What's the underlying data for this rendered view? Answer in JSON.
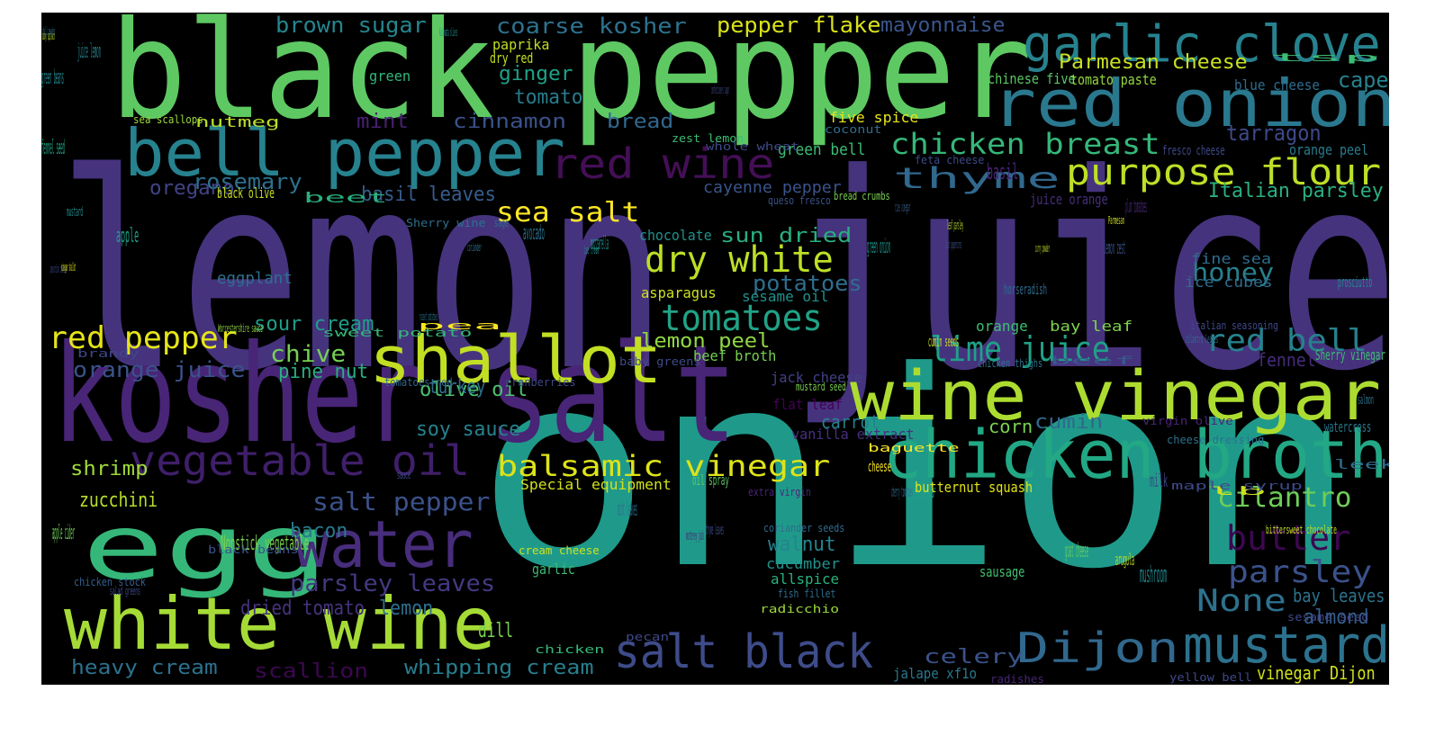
{
  "words": [
    {
      "t": "lemon juice",
      "c": "#46337e"
    },
    {
      "t": "onion",
      "c": "#1f9a8a"
    },
    {
      "t": "black pepper",
      "c": "#5ec962"
    },
    {
      "t": "kosher salt",
      "c": "#482576"
    },
    {
      "t": "egg",
      "c": "#35b779"
    },
    {
      "t": "garlic clove",
      "c": "#26828e"
    },
    {
      "t": "red onion",
      "c": "#2a788e"
    },
    {
      "t": "bell pepper",
      "c": "#26828e"
    },
    {
      "t": "wine vinegar",
      "c": "#addc30"
    },
    {
      "t": "chicken broth",
      "c": "#22a884"
    },
    {
      "t": "white wine",
      "c": "#a5db36"
    },
    {
      "t": "shallot",
      "c": "#c2df23"
    },
    {
      "t": "water",
      "c": "#472d7b"
    },
    {
      "t": "vegetable oil",
      "c": "#3f1f6a"
    },
    {
      "t": "red wine",
      "c": "#440f56"
    },
    {
      "t": "salt black",
      "c": "#3e4c8a"
    },
    {
      "t": "Dijon",
      "c": "#31688e"
    },
    {
      "t": "mustard",
      "c": "#2c728e"
    },
    {
      "t": "purpose flour",
      "c": "#bddf26"
    },
    {
      "t": "chicken breast",
      "c": "#35b779"
    },
    {
      "t": "thyme",
      "c": "#31688e"
    },
    {
      "t": "dry white",
      "c": "#bddf26"
    },
    {
      "t": "tomatoes",
      "c": "#20a386"
    },
    {
      "t": "balsamic vinegar",
      "c": "#dde318"
    },
    {
      "t": "red pepper",
      "c": "#e5e419"
    },
    {
      "t": "lime juice",
      "c": "#1fa188"
    },
    {
      "t": "red bell",
      "c": "#26828e"
    },
    {
      "t": "butter",
      "c": "#3e0751"
    },
    {
      "t": "parsley",
      "c": "#3b528b"
    },
    {
      "t": "None",
      "c": "#2c728e"
    },
    {
      "t": "cilantro",
      "c": "#6ece58"
    },
    {
      "t": "sea salt",
      "c": "#fde725"
    },
    {
      "t": "Parmesan cheese",
      "c": "#c8e020"
    },
    {
      "t": "brown sugar",
      "c": "#25858e"
    },
    {
      "t": "coarse kosher",
      "c": "#2c728e"
    },
    {
      "t": "pepper flake",
      "c": "#d8e219"
    },
    {
      "t": "mayonnaise",
      "c": "#39568c"
    },
    {
      "t": "ginger",
      "c": "#1fa188"
    },
    {
      "t": "tomato",
      "c": "#287c8e"
    },
    {
      "t": "mint",
      "c": "#482071"
    },
    {
      "t": "cinnamon",
      "c": "#3b528b"
    },
    {
      "t": "bread",
      "c": "#31688e"
    },
    {
      "t": "rosemary",
      "c": "#2d708e"
    },
    {
      "t": "basil leaves",
      "c": "#365d8d"
    },
    {
      "t": "basil",
      "c": "#482475"
    },
    {
      "t": "oregano",
      "c": "#414487"
    },
    {
      "t": "honey",
      "c": "#27808e"
    },
    {
      "t": "capers",
      "c": "#26828e"
    },
    {
      "t": "tarragon",
      "c": "#3e4a89"
    },
    {
      "t": "Italian parsley",
      "c": "#2ab07f"
    },
    {
      "t": "orange juice",
      "c": "#3b528b"
    },
    {
      "t": "chive",
      "c": "#75d054"
    },
    {
      "t": "pine nut",
      "c": "#29af7f"
    },
    {
      "t": "sour cream",
      "c": "#1f9e89"
    },
    {
      "t": "lemon peel",
      "c": "#90d743"
    },
    {
      "t": "potatoes",
      "c": "#2e6e8e"
    },
    {
      "t": "sun dried",
      "c": "#29af7f"
    },
    {
      "t": "olive oil",
      "c": "#4ac16d"
    },
    {
      "t": "soy sauce",
      "c": "#26828e"
    },
    {
      "t": "cumin",
      "c": "#31688e"
    },
    {
      "t": "salt pepper",
      "c": "#3b528b"
    },
    {
      "t": "shrimp",
      "c": "#9fda3a"
    },
    {
      "t": "zucchini",
      "c": "#b5de2b"
    },
    {
      "t": "walnut",
      "c": "#25848e"
    },
    {
      "t": "parsley leaves",
      "c": "#453882"
    },
    {
      "t": "heavy cream",
      "c": "#2c728e"
    },
    {
      "t": "whipping cream",
      "c": "#277f8e"
    },
    {
      "t": "scallion",
      "c": "#3e0751"
    },
    {
      "t": "celery",
      "c": "#3b528b"
    },
    {
      "t": "mushroom",
      "c": "#23898e"
    },
    {
      "t": "goat cheese",
      "c": "#5ec962"
    },
    {
      "t": "almond",
      "c": "#355f8d"
    },
    {
      "t": "bay leaves",
      "c": "#2c728e"
    },
    {
      "t": "vinegar Dijon",
      "c": "#d0e11c"
    },
    {
      "t": "green beans",
      "c": "#24878e"
    },
    {
      "t": "juice lemon",
      "c": "#25858e"
    },
    {
      "t": "fennel seed",
      "c": "#20a486"
    },
    {
      "t": "apple",
      "c": "#1f9e89"
    },
    {
      "t": "apple cider",
      "c": "#6ece58"
    },
    {
      "t": "bacon",
      "c": "#2a788e"
    },
    {
      "t": "dried tomato",
      "c": "#46337e"
    },
    {
      "t": "lemon",
      "c": "#2d708e"
    },
    {
      "t": "dill",
      "c": "#7ad151"
    },
    {
      "t": "turkey",
      "c": "#2d708e"
    },
    {
      "t": "carrot",
      "c": "#26828e"
    },
    {
      "t": "avocado",
      "c": "#2c728e"
    },
    {
      "t": "mozzarella",
      "c": "#1f968b"
    },
    {
      "t": "chocolate",
      "c": "#21918c"
    },
    {
      "t": "green onion",
      "c": "#1f968b"
    },
    {
      "t": "lemon zest",
      "c": "#3b528b"
    },
    {
      "t": "plum tomatoes",
      "c": "#482878"
    },
    {
      "t": "fennel bulb",
      "c": "#472c7a"
    },
    {
      "t": "milk",
      "c": "#3f4788"
    },
    {
      "t": "corn",
      "c": "#7ad151"
    },
    {
      "t": "mint leaves",
      "c": "#2d708e"
    },
    {
      "t": "cider vinegar",
      "c": "#1fa187"
    },
    {
      "t": "arugula",
      "c": "#c2df23"
    },
    {
      "t": "eggplant",
      "c": "#2d708e"
    },
    {
      "t": "green bell",
      "c": "#3dbc74"
    },
    {
      "t": "cayenne pepper",
      "c": "#3a548c"
    },
    {
      "t": "asparagus",
      "c": "#cde11d"
    },
    {
      "t": "sesame oil",
      "c": "#21918c"
    },
    {
      "t": "beef broth",
      "c": "#75d054"
    },
    {
      "t": "jack cheese",
      "c": "#424086"
    },
    {
      "t": "flat leaf",
      "c": "#440154"
    },
    {
      "t": "vanilla extract",
      "c": "#46307e"
    },
    {
      "t": "green",
      "c": "#32b67a"
    },
    {
      "t": "paprika",
      "c": "#c0df25"
    },
    {
      "t": "dry red",
      "c": "#c5e021"
    },
    {
      "t": "nutmeg",
      "c": "#b8de29"
    },
    {
      "t": "five spice",
      "c": "#e7e419"
    },
    {
      "t": "chinese five",
      "c": "#5ac864"
    },
    {
      "t": "tomato paste",
      "c": "#95d840"
    },
    {
      "t": "blue cheese",
      "c": "#2f6c8e"
    },
    {
      "t": "orange peel",
      "c": "#287d8e"
    },
    {
      "t": "juice orange",
      "c": "#472f7d"
    },
    {
      "t": "fine sea",
      "c": "#2f6c8e"
    },
    {
      "t": "ice cubes",
      "c": "#2f6b8e"
    },
    {
      "t": "prosciutto",
      "c": "#228b8d"
    },
    {
      "t": "beet",
      "c": "#2ab07f"
    },
    {
      "t": "black olive",
      "c": "#c8e020"
    },
    {
      "t": "mustard",
      "c": "#21908d"
    },
    {
      "t": "horseradish",
      "c": "#2e6d8e"
    },
    {
      "t": "orange",
      "c": "#40bd72"
    },
    {
      "t": "bay leaf",
      "c": "#7fd34e"
    },
    {
      "t": "cumin seeds",
      "c": "#cae11f"
    },
    {
      "t": "beef",
      "c": "#38588c"
    },
    {
      "t": "Sherry vinegar",
      "c": "#3fbc73"
    },
    {
      "t": "watercress",
      "c": "#2a788e"
    },
    {
      "t": "salmon",
      "c": "#2c738e"
    },
    {
      "t": "butternut squash",
      "c": "#e2e418"
    },
    {
      "t": "Special equipment",
      "c": "#d0e11c"
    },
    {
      "t": "Nonstick vegetable",
      "c": "#7ad151"
    },
    {
      "t": "oil spray",
      "c": "#5ec962"
    },
    {
      "t": "leek",
      "c": "#2f6c8e"
    },
    {
      "t": "cucumber",
      "c": "#21918c"
    },
    {
      "t": "allspice",
      "c": "#2bb07f"
    },
    {
      "t": "sausage",
      "c": "#44bf70"
    },
    {
      "t": "garlic",
      "c": "#3dbc74"
    },
    {
      "t": "cheese",
      "c": "#fde725"
    },
    {
      "t": "cherry tomatoes",
      "c": "#2e6e8e"
    },
    {
      "t": "monterey jack",
      "c": "#482173"
    },
    {
      "t": "thyme leaves",
      "c": "#3e4c8a"
    },
    {
      "t": "leaf parsley",
      "c": "#b8de29"
    },
    {
      "t": "rice vinegar",
      "c": "#355f8d"
    },
    {
      "t": "jalape xf1o",
      "c": "#2a788e"
    },
    {
      "t": "yellow bell",
      "c": "#3f4889"
    },
    {
      "t": "chicken thighs",
      "c": "#2b748e"
    },
    {
      "t": "sesame seed",
      "c": "#3f4889"
    },
    {
      "t": "Kalamata olives",
      "c": "#21918c"
    },
    {
      "t": "tsp",
      "c": "#3dbc74"
    },
    {
      "t": "confectioners sugar",
      "c": "#3e4989"
    },
    {
      "t": "coconut",
      "c": "#2f6c8e"
    },
    {
      "t": "zest lemon",
      "c": "#3dbc74"
    },
    {
      "t": "whole wheat",
      "c": "#3e4a89"
    },
    {
      "t": "sea scallops",
      "c": "#9bd93c"
    },
    {
      "t": "baby spinach",
      "c": "#b2dd2d"
    },
    {
      "t": "chili powder",
      "c": "#2f6b8e"
    },
    {
      "t": "Sherry wine",
      "c": "#2d708e"
    },
    {
      "t": "queso fresco",
      "c": "#3b528b"
    },
    {
      "t": "bread crumbs",
      "c": "#7ad151"
    },
    {
      "t": "feta cheese",
      "c": "#3e4a89"
    },
    {
      "t": "fresco cheese",
      "c": "#3e4a89"
    },
    {
      "t": "Parmesan",
      "c": "#cde11d"
    },
    {
      "t": "curry powder",
      "c": "#b8de29"
    },
    {
      "t": "black peppercorns",
      "c": "#3b528b"
    },
    {
      "t": "sage",
      "c": "#2f6c8e"
    },
    {
      "t": "coriander",
      "c": "#2f6c8e"
    },
    {
      "t": "ice cream",
      "c": "#21918c"
    },
    {
      "t": "pecorino cheese",
      "c": "#3e4a89"
    },
    {
      "t": "vinegar shallot",
      "c": "#e5e419"
    },
    {
      "t": "russet potatoes",
      "c": "#2c728e"
    },
    {
      "t": "pea",
      "c": "#fde725"
    },
    {
      "t": "sweet potato",
      "c": "#35b779"
    },
    {
      "t": "Worcestershire sauce",
      "c": "#90d743"
    },
    {
      "t": "brandy",
      "c": "#3f4788"
    },
    {
      "t": "baby greens",
      "c": "#3e4a89"
    },
    {
      "t": "tomatoes red",
      "c": "#31688e"
    },
    {
      "t": "cranberries",
      "c": "#3f4788"
    },
    {
      "t": "mustard seed",
      "c": "#7ad151"
    },
    {
      "t": "baguette",
      "c": "#fde725"
    },
    {
      "t": "virgin olive",
      "c": "#482576"
    },
    {
      "t": "cheese dressing",
      "c": "#2c728e"
    },
    {
      "t": "italian seasoning",
      "c": "#3e4989"
    },
    {
      "t": "cilantro leaves",
      "c": "#2f6c8e"
    },
    {
      "t": "sauce",
      "c": "#3e4a89"
    },
    {
      "t": "lb",
      "c": "#cde11d"
    },
    {
      "t": "maple syrup",
      "c": "#3e4989"
    },
    {
      "t": "bittersweet chocolate",
      "c": "#c8e020"
    },
    {
      "t": "extra virgin",
      "c": "#482576"
    },
    {
      "t": "black beans",
      "c": "#3b528b"
    },
    {
      "t": "coriander seeds",
      "c": "#2f6c8e"
    },
    {
      "t": "cream cheese",
      "c": "#cde11d"
    },
    {
      "t": "fish fillet",
      "c": "#2f6c8e"
    },
    {
      "t": "radicchio",
      "c": "#9bd93c"
    },
    {
      "t": "chicken stock",
      "c": "#355f8d"
    },
    {
      "t": "salad greens",
      "c": "#3e4a89"
    },
    {
      "t": "pecan",
      "c": "#3e4a89"
    },
    {
      "t": "chicken",
      "c": "#35b779"
    },
    {
      "t": "radishes",
      "c": "#482475"
    },
    {
      "t": "onion carrot",
      "c": "#3e4a89"
    }
  ]
}
